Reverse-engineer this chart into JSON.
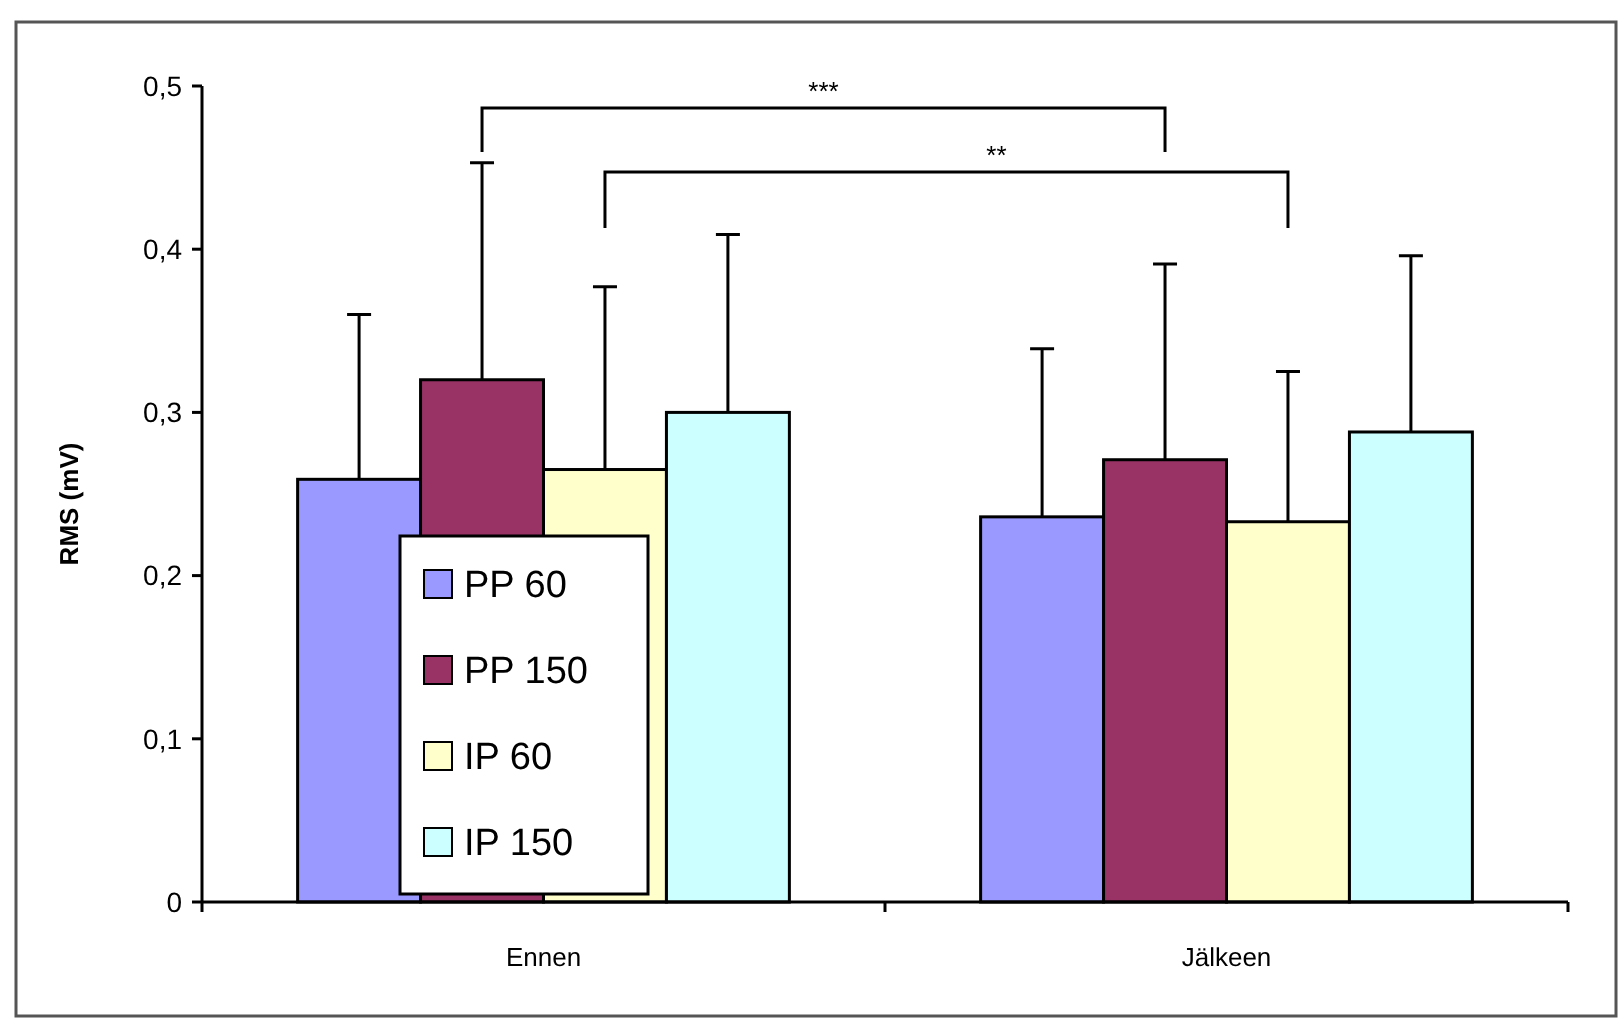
{
  "chart_data": {
    "type": "bar",
    "ylabel": "RMS (mV)",
    "categories": [
      "Ennen",
      "Jälkeen"
    ],
    "series": [
      {
        "name": "PP 60",
        "color": "#9999ff",
        "values": [
          0.259,
          0.236
        ],
        "errors": [
          [
            0.259,
            0.36
          ],
          [
            0.236,
            0.339
          ]
        ]
      },
      {
        "name": "PP 150",
        "color": "#993366",
        "values": [
          0.32,
          0.271
        ],
        "errors": [
          [
            0.32,
            0.453
          ],
          [
            0.271,
            0.391
          ]
        ]
      },
      {
        "name": "IP 60",
        "color": "#ffffcc",
        "values": [
          0.265,
          0.233
        ],
        "errors": [
          [
            0.265,
            0.377
          ],
          [
            0.233,
            0.325
          ]
        ]
      },
      {
        "name": "IP 150",
        "color": "#ccffff",
        "values": [
          0.3,
          0.288
        ],
        "errors": [
          [
            0.3,
            0.409
          ],
          [
            0.288,
            0.396
          ]
        ]
      }
    ],
    "ylim": [
      0,
      0.5
    ],
    "yticks": [
      {
        "value": 0,
        "label": "0"
      },
      {
        "value": 0.1,
        "label": "0,1"
      },
      {
        "value": 0.2,
        "label": "0,2"
      },
      {
        "value": 0.3,
        "label": "0,3"
      },
      {
        "value": 0.4,
        "label": "0,4"
      },
      {
        "value": 0.5,
        "label": "0,5"
      }
    ],
    "annotations": [
      "***",
      "**"
    ],
    "legend": "bottom left",
    "grid": false
  }
}
